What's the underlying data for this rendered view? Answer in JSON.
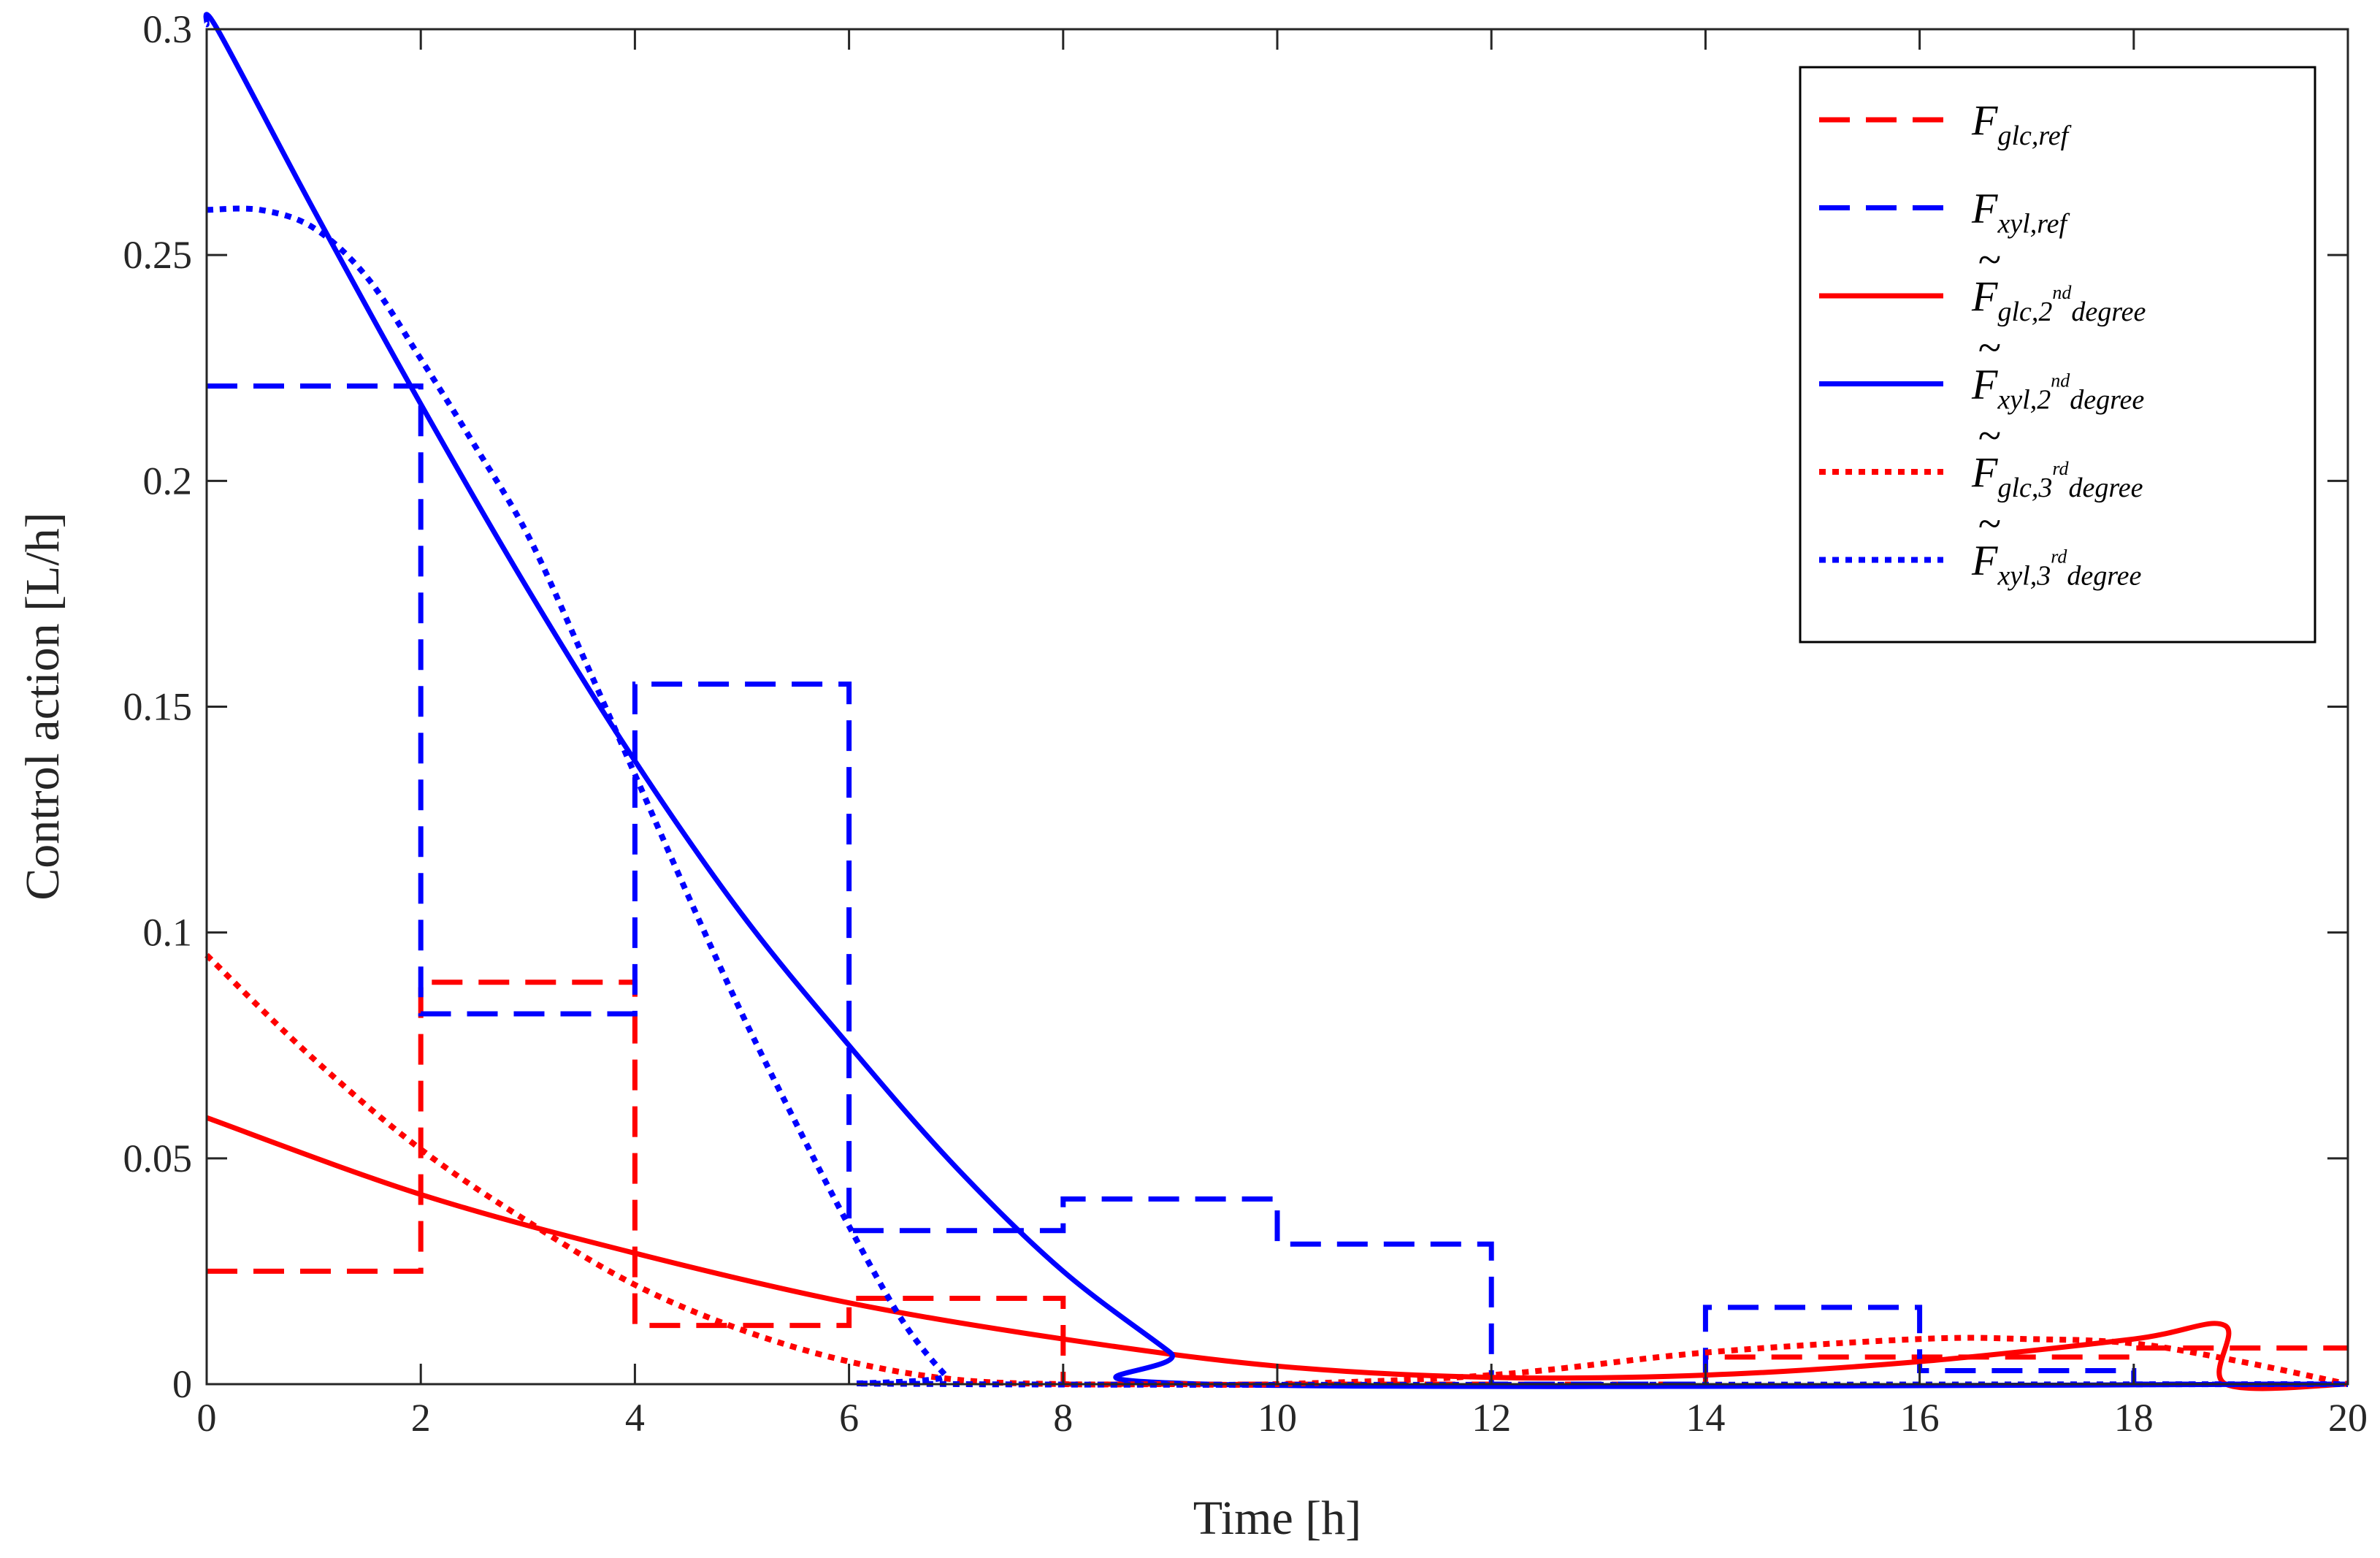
{
  "chart_data": {
    "type": "line",
    "title": "",
    "xlabel": "Time [h]",
    "ylabel": "Control action [L/h]",
    "xlim": [
      0,
      20
    ],
    "ylim": [
      0,
      0.3
    ],
    "xticks": [
      0,
      2,
      4,
      6,
      8,
      10,
      12,
      14,
      16,
      18,
      20
    ],
    "yticks": [
      0,
      0.05,
      0.1,
      0.15,
      0.2,
      0.25,
      0.3
    ],
    "xtick_labels": [
      "0",
      "2",
      "4",
      "6",
      "8",
      "10",
      "12",
      "14",
      "16",
      "18",
      "20"
    ],
    "ytick_labels": [
      "0",
      "0.05",
      "0.1",
      "0.15",
      "0.2",
      "0.25",
      "0.3"
    ],
    "grid": false,
    "legend_position": "top-right",
    "series": [
      {
        "name": "F_glc,ref",
        "legend": {
          "base": "F",
          "tilde": false,
          "sub": "glc,ref",
          "sup": "",
          "tail": ""
        },
        "color": "#ff0000",
        "style": "dashed",
        "shape": "step",
        "x": [
          0,
          2,
          2,
          4,
          4,
          6,
          6,
          8,
          8,
          14,
          14,
          18,
          18,
          20
        ],
        "y": [
          0.025,
          0.025,
          0.089,
          0.089,
          0.013,
          0.013,
          0.019,
          0.019,
          0,
          0,
          0.006,
          0.006,
          0.008,
          0.008
        ]
      },
      {
        "name": "F_xyl,ref",
        "legend": {
          "base": "F",
          "tilde": false,
          "sub": "xyl,ref",
          "sup": "",
          "tail": ""
        },
        "color": "#0000ff",
        "style": "dashed",
        "shape": "step",
        "x": [
          0,
          2,
          2,
          4,
          4,
          6,
          6,
          8,
          8,
          10,
          10,
          12,
          12,
          14,
          14,
          16,
          16,
          18,
          18,
          20
        ],
        "y": [
          0.221,
          0.221,
          0.082,
          0.082,
          0.155,
          0.155,
          0.034,
          0.034,
          0.041,
          0.041,
          0.031,
          0.031,
          0,
          0,
          0.017,
          0.017,
          0.003,
          0.003,
          0,
          0
        ]
      },
      {
        "name": "~F_glc,2nd degree",
        "legend": {
          "base": "F",
          "tilde": true,
          "sub": "glc,2",
          "sup": "nd",
          "tail": "degree"
        },
        "color": "#ff0000",
        "style": "solid",
        "shape": "curve",
        "x": [
          0,
          2,
          4,
          6,
          8,
          10,
          12,
          14,
          16,
          18,
          18.85,
          18.86,
          20
        ],
        "y": [
          0.059,
          0.042,
          0.029,
          0.018,
          0.01,
          0.004,
          0.0015,
          0.002,
          0.005,
          0.01,
          0.013,
          0,
          0
        ]
      },
      {
        "name": "~F_xyl,2nd degree",
        "legend": {
          "base": "F",
          "tilde": true,
          "sub": "xyl,2",
          "sup": "nd",
          "tail": "degree"
        },
        "color": "#0000ff",
        "style": "solid",
        "shape": "curve",
        "x": [
          0,
          0.1,
          1,
          2,
          3,
          4,
          5,
          6,
          7,
          8,
          9,
          9.35,
          20
        ],
        "y": [
          0.301,
          0.3,
          0.26,
          0.217,
          0.176,
          0.138,
          0.104,
          0.075,
          0.048,
          0.025,
          0.007,
          0,
          0
        ]
      },
      {
        "name": "~F_glc,3rd degree",
        "legend": {
          "base": "F",
          "tilde": true,
          "sub": "glc,3",
          "sup": "rd",
          "tail": "degree"
        },
        "color": "#ff0000",
        "style": "dotted",
        "shape": "curve",
        "x": [
          0,
          1,
          2,
          3,
          4,
          5,
          6,
          7,
          8,
          9,
          10,
          12,
          14,
          16,
          17,
          18,
          19,
          20
        ],
        "y": [
          0.095,
          0.072,
          0.052,
          0.036,
          0.022,
          0.012,
          0.005,
          0.001,
          0,
          0,
          0,
          0.002,
          0.007,
          0.01,
          0.01,
          0.009,
          0.005,
          0
        ]
      },
      {
        "name": "~F_xyl,3rd degree",
        "legend": {
          "base": "F",
          "tilde": true,
          "sub": "xyl,3",
          "sup": "rd",
          "tail": "degree"
        },
        "color": "#0000ff",
        "style": "dotted",
        "shape": "curve",
        "x": [
          0,
          0.5,
          1,
          1.5,
          2,
          2.5,
          3,
          3.5,
          4,
          4.5,
          5,
          5.5,
          6,
          6.5,
          6.9,
          7.05,
          20
        ],
        "y": [
          0.26,
          0.26,
          0.256,
          0.245,
          0.227,
          0.208,
          0.188,
          0.162,
          0.135,
          0.108,
          0.082,
          0.058,
          0.035,
          0.014,
          0.002,
          0,
          0
        ]
      }
    ]
  }
}
